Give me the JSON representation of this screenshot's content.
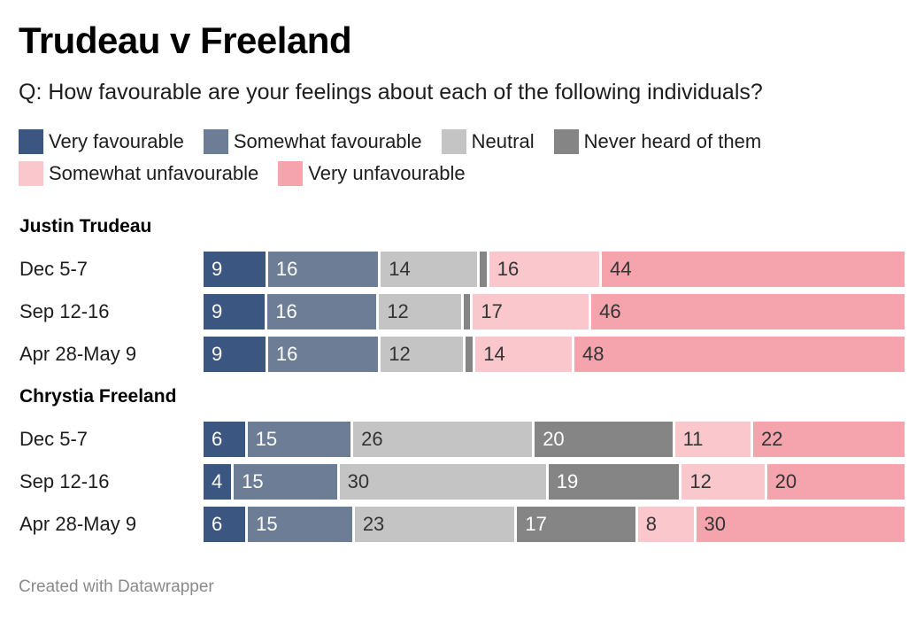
{
  "chart_data": {
    "type": "bar",
    "orientation": "horizontal",
    "stacked": true,
    "title": "Trudeau v Freeland",
    "subtitle": "Q: How favourable are your feelings about each of the following individuals?",
    "footer": "Created with Datawrapper",
    "xlim": [
      0,
      100
    ],
    "legend": [
      {
        "name": "Very favourable",
        "color": "#3b5680",
        "label_color": "#ffffff"
      },
      {
        "name": "Somewhat favourable",
        "color": "#6e7d96",
        "label_color": "#ffffff"
      },
      {
        "name": "Neutral",
        "color": "#c4c4c4",
        "label_color": "#333333"
      },
      {
        "name": "Never heard of them",
        "color": "#858585",
        "label_color": "#ffffff"
      },
      {
        "name": "Somewhat unfavourable",
        "color": "#f9c7cc",
        "label_color": "#333333"
      },
      {
        "name": "Very unfavourable",
        "color": "#f5a3ac",
        "label_color": "#333333"
      }
    ],
    "groups": [
      {
        "name": "Justin Trudeau",
        "rows": [
          {
            "label": "Dec 5-7",
            "values": [
              9,
              16,
              14,
              1,
              16,
              44
            ],
            "labels": [
              "9",
              "16",
              "14",
              "",
              "16",
              "44"
            ]
          },
          {
            "label": "Sep 12-16",
            "values": [
              9,
              16,
              12,
              1,
              17,
              46
            ],
            "labels": [
              "9",
              "16",
              "12",
              "",
              "17",
              "46"
            ]
          },
          {
            "label": "Apr 28-May 9",
            "values": [
              9,
              16,
              12,
              1,
              14,
              48
            ],
            "labels": [
              "9",
              "16",
              "12",
              "",
              "14",
              "48"
            ]
          }
        ]
      },
      {
        "name": "Chrystia Freeland",
        "rows": [
          {
            "label": "Dec 5-7",
            "values": [
              6,
              15,
              26,
              20,
              11,
              22
            ],
            "labels": [
              "6",
              "15",
              "26",
              "20",
              "11",
              "22"
            ]
          },
          {
            "label": "Sep 12-16",
            "values": [
              4,
              15,
              30,
              19,
              12,
              20
            ],
            "labels": [
              "4",
              "15",
              "30",
              "19",
              "12",
              "20"
            ]
          },
          {
            "label": "Apr 28-May 9",
            "values": [
              6,
              15,
              23,
              17,
              8,
              30
            ],
            "labels": [
              "6",
              "15",
              "23",
              "17",
              "8",
              "30"
            ]
          }
        ]
      }
    ]
  }
}
